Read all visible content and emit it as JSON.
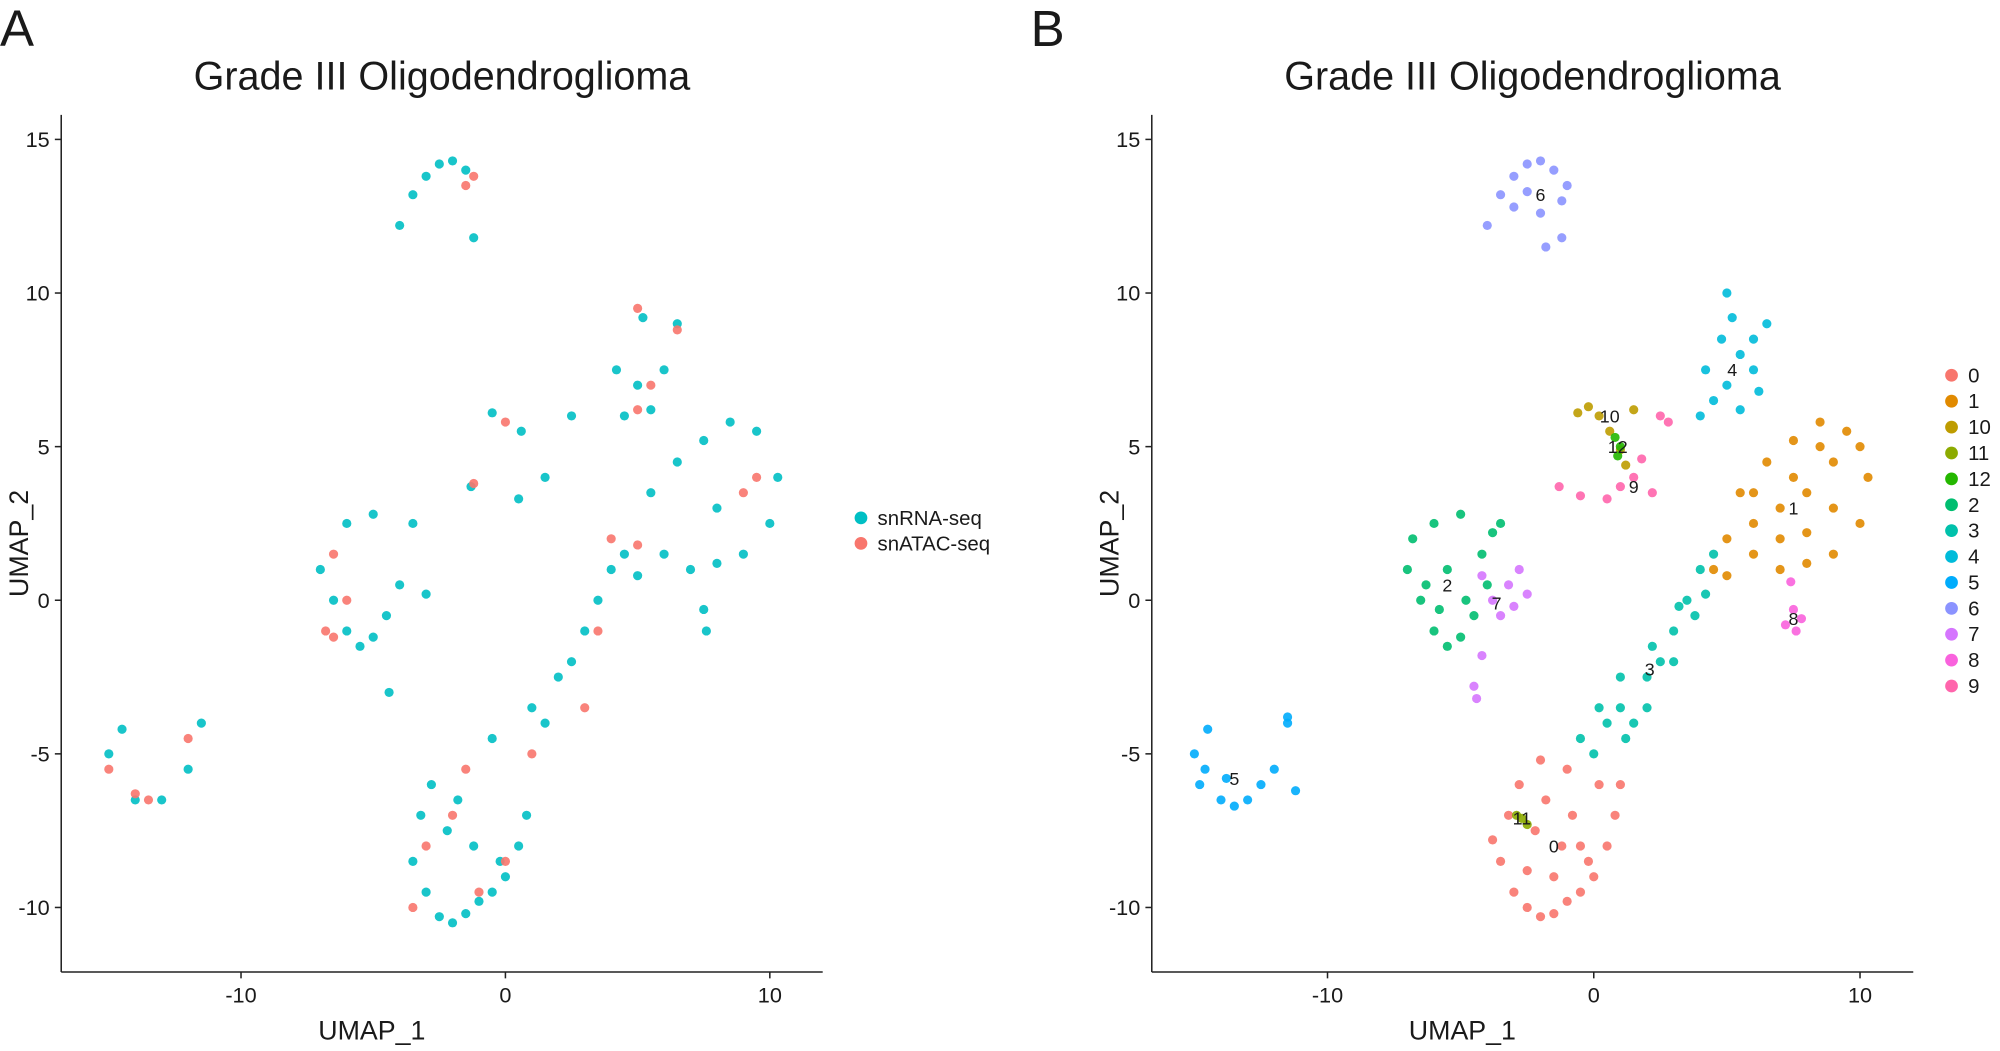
{
  "chart_data": [
    {
      "type": "scatter",
      "panel": "A",
      "title": "Grade III Oligodendroglioma",
      "x_label": "UMAP_1",
      "y_label": "UMAP_2",
      "xlim": [
        -16.8,
        12
      ],
      "ylim": [
        -12.1,
        15.8
      ],
      "xticks": [
        -10,
        0,
        10
      ],
      "yticks": [
        -10,
        -5,
        0,
        5,
        10,
        15
      ],
      "legend": "right",
      "cluster_labels": false,
      "series": [
        {
          "name": "snRNA-seq",
          "color": "#00bfc4",
          "x": [
            -3.5,
            -3,
            -2.5,
            -2,
            -1.5,
            -1,
            -0.5,
            0,
            0.5,
            -3.2,
            -2.2,
            -1.2,
            -0.2,
            0.8,
            -2.8,
            -1.8,
            -0.5,
            1,
            2,
            3,
            4,
            4.5,
            1.5,
            2.5,
            3.5,
            5,
            6,
            7,
            8,
            9,
            10,
            10.3,
            9.5,
            8.5,
            7.5,
            6.5,
            5.5,
            8,
            4.5,
            5,
            5.5,
            6,
            6.5,
            4.2,
            5.2,
            -3.5,
            -3,
            -2.5,
            -2,
            -1.5,
            -4,
            -1.2,
            -7,
            -6.5,
            -6,
            -5.5,
            -5,
            -4.5,
            -4,
            -3.5,
            -6,
            -5,
            -3,
            -4.4,
            -15,
            -14.5,
            -14,
            -13,
            -12,
            -11.5,
            -1.3,
            0.5,
            1.5,
            2.5,
            -0.5,
            0.6,
            7.5,
            7.6
          ],
          "y": [
            -8.5,
            -9.5,
            -10.3,
            -10.5,
            -10.2,
            -9.8,
            -9.5,
            -9,
            -8,
            -7,
            -7.5,
            -8,
            -8.5,
            -7,
            -6,
            -6.5,
            -4.5,
            -3.5,
            -2.5,
            -1,
            1,
            1.5,
            -4,
            -2,
            0,
            0.8,
            1.5,
            1,
            1.2,
            1.5,
            2.5,
            4,
            5.5,
            5.8,
            5.2,
            4.5,
            3.5,
            3,
            6,
            7,
            6.2,
            7.5,
            9,
            7.5,
            9.2,
            13.2,
            13.8,
            14.2,
            14.3,
            14,
            12.2,
            11.8,
            1,
            0,
            -1,
            -1.5,
            -1.2,
            -0.5,
            0.5,
            2.5,
            2.5,
            2.8,
            0.2,
            -3,
            -5,
            -4.2,
            -6.5,
            -6.5,
            -5.5,
            -4,
            3.7,
            3.3,
            4,
            6,
            6.1,
            5.5,
            -0.3,
            -1
          ]
        },
        {
          "name": "snATAC-seq",
          "color": "#f8766d",
          "x": [
            -1.2,
            -1.5,
            5,
            5.5,
            5,
            6.5,
            9.5,
            9,
            4,
            5,
            -6.5,
            -6,
            -6.8,
            -6.5,
            -14,
            -13.5,
            -15,
            -12,
            -3,
            -2,
            -3.5,
            -1,
            0,
            1,
            3,
            3.5,
            -1.5,
            0,
            -1.2
          ],
          "y": [
            13.8,
            13.5,
            9.5,
            7,
            6.2,
            8.8,
            4,
            3.5,
            2,
            1.8,
            1.5,
            0,
            -1,
            -1.2,
            -6.3,
            -6.5,
            -5.5,
            -4.5,
            -8,
            -7,
            -10,
            -9.5,
            -8.5,
            -5,
            -3.5,
            -1,
            -5.5,
            5.8,
            3.8
          ]
        }
      ]
    },
    {
      "type": "scatter",
      "panel": "B",
      "title": "Grade III Oligodendroglioma",
      "x_label": "UMAP_1",
      "y_label": "UMAP_2",
      "xlim": [
        -16.6,
        12
      ],
      "ylim": [
        -12.1,
        15.8
      ],
      "xticks": [
        -10,
        0,
        10
      ],
      "yticks": [
        -10,
        -5,
        0,
        5,
        10,
        15
      ],
      "legend": "right",
      "cluster_labels": true,
      "series": [
        {
          "name": "0",
          "color": "#f8766d",
          "x": [
            -3.5,
            -3,
            -2.5,
            -2,
            -1.5,
            -1,
            -0.5,
            0,
            0.5,
            -3.2,
            -2.2,
            -1.2,
            -0.2,
            0.8,
            -2.8,
            -1.8,
            -0.8,
            0.2,
            -2.5,
            -1.5,
            -0.5,
            -1,
            -2,
            -3.8,
            1
          ],
          "y": [
            -8.5,
            -9.5,
            -10,
            -10.3,
            -10.2,
            -9.8,
            -9.5,
            -9,
            -8,
            -7,
            -7.5,
            -8,
            -8.5,
            -7,
            -6,
            -6.5,
            -7,
            -6,
            -8.8,
            -9,
            -8,
            -5.5,
            -5.2,
            -7.8,
            -6
          ]
        },
        {
          "name": "1",
          "color": "#e18a00",
          "x": [
            4.5,
            5,
            6,
            7,
            8,
            9,
            10,
            10.3,
            9.5,
            8.5,
            7.5,
            6.5,
            5.5,
            6,
            7,
            8,
            9,
            10,
            8,
            7,
            6,
            9,
            5,
            7.5,
            8.5
          ],
          "y": [
            1,
            0.8,
            1.5,
            1,
            1.2,
            1.5,
            2.5,
            4,
            5.5,
            5.8,
            5.2,
            4.5,
            3.5,
            2.5,
            3,
            3.5,
            3,
            5,
            2.2,
            2,
            3.5,
            4.5,
            2,
            4,
            5
          ]
        },
        {
          "name": "10",
          "color": "#be9c00",
          "x": [
            -0.6,
            -0.2,
            0.2,
            0.6,
            1,
            1.2,
            1.5
          ],
          "y": [
            6.1,
            6.3,
            6,
            5.5,
            4.9,
            4.4,
            6.2
          ]
        },
        {
          "name": "11",
          "color": "#8cab00",
          "x": [
            -2.7,
            -2.5,
            -2.9
          ],
          "y": [
            -7.1,
            -7.3,
            -7
          ]
        },
        {
          "name": "12",
          "color": "#24b700",
          "x": [
            0.8,
            1,
            0.9
          ],
          "y": [
            5.3,
            5,
            4.7
          ]
        },
        {
          "name": "2",
          "color": "#00be70",
          "x": [
            -7,
            -6.5,
            -6,
            -5.5,
            -5,
            -4.5,
            -4,
            -3.5,
            -6.8,
            -6,
            -5,
            -4.2,
            -6.3,
            -5.5,
            -4.8,
            -5.8,
            -3.8
          ],
          "y": [
            1,
            0,
            -1,
            -1.5,
            -1.2,
            -0.5,
            0.5,
            2.5,
            2,
            2.5,
            2.8,
            1.5,
            0.5,
            1,
            0,
            -0.3,
            2.2
          ]
        },
        {
          "name": "3",
          "color": "#00c1ab",
          "x": [
            -0.5,
            0,
            0.5,
            1,
            1.5,
            2,
            2.5,
            3,
            3.5,
            4,
            4.5,
            1,
            2,
            3,
            3.8,
            0.2,
            1.2,
            2.2,
            3.2,
            4.2
          ],
          "y": [
            -4.5,
            -5,
            -4,
            -3.5,
            -4,
            -2.5,
            -2,
            -1,
            0,
            1,
            1.5,
            -2.5,
            -3.5,
            -2,
            -0.5,
            -3.5,
            -4.5,
            -1.5,
            -0.2,
            0.2
          ]
        },
        {
          "name": "4",
          "color": "#00bbda",
          "x": [
            4,
            4.5,
            5,
            5.5,
            6,
            6.5,
            4.2,
            5,
            6,
            5.5,
            4.8,
            6.2,
            5.2
          ],
          "y": [
            6,
            6.5,
            7,
            6.2,
            7.5,
            9,
            7.5,
            10,
            8.5,
            8,
            8.5,
            6.8,
            9.2
          ]
        },
        {
          "name": "5",
          "color": "#00acfc",
          "x": [
            -15,
            -14.8,
            -14.5,
            -14,
            -13.5,
            -13,
            -12.5,
            -12,
            -11.5,
            -11.2,
            -14.6,
            -13.8,
            -11.5
          ],
          "y": [
            -5,
            -6,
            -4.2,
            -6.5,
            -6.7,
            -6.5,
            -6,
            -5.5,
            -4,
            -6.2,
            -5.5,
            -5.8,
            -3.8
          ]
        },
        {
          "name": "6",
          "color": "#8b93ff",
          "x": [
            -3.5,
            -3,
            -2.5,
            -2,
            -1.5,
            -1,
            -3,
            -2,
            -1.2,
            -2.5,
            -4,
            -1.8,
            -1.2
          ],
          "y": [
            13.2,
            13.8,
            14.2,
            14.3,
            14,
            13.5,
            12.8,
            12.6,
            13,
            13.3,
            12.2,
            11.5,
            11.8
          ]
        },
        {
          "name": "7",
          "color": "#d575fe",
          "x": [
            -4.2,
            -3.8,
            -3.2,
            -2.8,
            -2.5,
            -3.5,
            -3,
            -4.5,
            -4.4,
            -4.2
          ],
          "y": [
            0.8,
            0,
            0.5,
            1,
            0.2,
            -0.5,
            -0.2,
            -2.8,
            -3.2,
            -1.8
          ]
        },
        {
          "name": "8",
          "color": "#f962dd",
          "x": [
            7.2,
            7.5,
            7.8,
            7.4,
            7.6
          ],
          "y": [
            -0.8,
            -0.3,
            -0.6,
            0.6,
            -1
          ]
        },
        {
          "name": "9",
          "color": "#ff65ac",
          "x": [
            -1.3,
            -0.5,
            0.5,
            1,
            1.5,
            2.2,
            2.8,
            2.5,
            1.8
          ],
          "y": [
            3.7,
            3.4,
            3.3,
            3.7,
            4,
            3.5,
            5.8,
            6,
            4.6
          ]
        }
      ]
    }
  ]
}
